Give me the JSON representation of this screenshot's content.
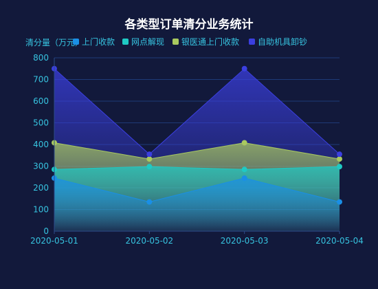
{
  "chart_data": {
    "type": "area",
    "title": "各类型订单清分业务统计",
    "ylabel": "清分量（万元）",
    "xlabel": "",
    "categories": [
      "2020-05-01",
      "2020-05-02",
      "2020-05-03",
      "2020-05-04"
    ],
    "ylim": [
      0,
      800
    ],
    "yticks": [
      0,
      100,
      200,
      300,
      400,
      500,
      600,
      700,
      800
    ],
    "grid": true,
    "legend_position": "top",
    "series": [
      {
        "name": "上门收款",
        "values": [
          245,
          135,
          245,
          135
        ],
        "color": "#1a8fe6"
      },
      {
        "name": "网点解现",
        "values": [
          285,
          298,
          285,
          298
        ],
        "color": "#1fc9c4"
      },
      {
        "name": "银医通上门收款",
        "values": [
          408,
          333,
          408,
          333
        ],
        "color": "#a9c95f"
      },
      {
        "name": "自助机具卸钞",
        "values": [
          750,
          355,
          750,
          355
        ],
        "color": "#3b3fe0"
      }
    ]
  },
  "style": {
    "background": "#12193b",
    "title_color": "#ffffff",
    "axis_text_color": "#37c4e0",
    "grid_color": "#1e3a78",
    "axis_line_color": "#2c4a8a"
  }
}
